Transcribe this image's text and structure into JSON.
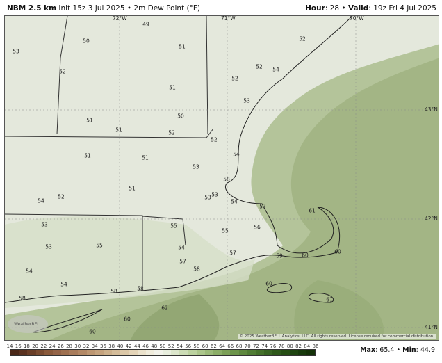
{
  "header": {
    "model": "NBM 2.5 km",
    "init": "Init 15z 3 Jul 2025",
    "separator": "•",
    "product": "2m Dew Point (°F)",
    "hour_label": "Hour",
    "hour": "28",
    "valid_label": "Valid",
    "valid": "19z Fri 4 Jul 2025"
  },
  "map": {
    "longitude_labels": [
      "72°W",
      "71°W",
      "70°W"
    ],
    "latitude_labels": [
      "43°N",
      "42°N",
      "41°N"
    ],
    "values": [
      "49",
      "50",
      "53",
      "52",
      "51",
      "52",
      "52",
      "54",
      "52",
      "51",
      "53",
      "50",
      "51",
      "51",
      "52",
      "52",
      "51",
      "51",
      "54",
      "53",
      "51",
      "52",
      "54",
      "53",
      "53",
      "58",
      "54",
      "57",
      "61",
      "53",
      "55",
      "55",
      "56",
      "53",
      "55",
      "54",
      "57",
      "59",
      "60",
      "60",
      "57",
      "58",
      "54",
      "54",
      "58",
      "58",
      "60",
      "61",
      "58",
      "62",
      "60",
      "60"
    ],
    "copyright": "© 2025 WeatherBELL Analytics, LLC. All rights reserved. License required for commercial distribution.",
    "logo_text": "WeatherBELL"
  },
  "legend": {
    "ticks": [
      "14",
      "16",
      "18",
      "20",
      "22",
      "24",
      "26",
      "28",
      "30",
      "32",
      "34",
      "36",
      "38",
      "40",
      "42",
      "44",
      "46",
      "48",
      "50",
      "52",
      "54",
      "56",
      "58",
      "60",
      "62",
      "64",
      "66",
      "68",
      "70",
      "72",
      "74",
      "76",
      "78",
      "80",
      "82",
      "84",
      "86"
    ],
    "colors": [
      "#4b2818",
      "#5a3220",
      "#6a3e28",
      "#7a4c32",
      "#8a5a3c",
      "#946448",
      "#9e7050",
      "#a87c5c",
      "#b28866",
      "#bc9672",
      "#c4a27e",
      "#ccb08c",
      "#d4bc9a",
      "#dcc8a8",
      "#e4d4b8",
      "#ebe2cc",
      "#f0ecdc",
      "#f2f2ea",
      "#e8eede",
      "#dce6cc",
      "#ccdcb6",
      "#bcd2a0",
      "#acc68c",
      "#9cba7a",
      "#8cae68",
      "#7ca058",
      "#6c944a",
      "#5e883e",
      "#507c34",
      "#44702a",
      "#386422",
      "#2e581a",
      "#264e14",
      "#1e4410",
      "#183a0c",
      "#143208"
    ],
    "max_label": "Max",
    "max": "65.4",
    "min_label": "Min",
    "min": "44.9"
  }
}
